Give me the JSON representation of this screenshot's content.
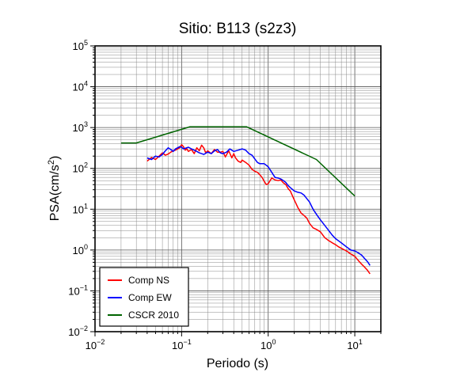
{
  "chart_data": {
    "type": "line",
    "title": "Sitio: B113 (s2z3)",
    "xlabel": "Periodo (s)",
    "ylabel": "PSA(cm/s²)",
    "xscale": "log",
    "yscale": "log",
    "xlim": [
      0.01,
      20
    ],
    "ylim": [
      0.01,
      100000
    ],
    "grid": true,
    "legend_position": "bottom-left",
    "x_tick_labels": [
      {
        "base": "10",
        "exp": "−2",
        "value": 0.01
      },
      {
        "base": "10",
        "exp": "−1",
        "value": 0.1
      },
      {
        "base": "10",
        "exp": "0",
        "value": 1
      },
      {
        "base": "10",
        "exp": "1",
        "value": 10
      }
    ],
    "y_tick_labels": [
      {
        "base": "10",
        "exp": "−2",
        "value": 0.01
      },
      {
        "base": "10",
        "exp": "−1",
        "value": 0.1
      },
      {
        "base": "10",
        "exp": "0",
        "value": 1
      },
      {
        "base": "10",
        "exp": "1",
        "value": 10
      },
      {
        "base": "10",
        "exp": "2",
        "value": 100
      },
      {
        "base": "10",
        "exp": "3",
        "value": 1000
      },
      {
        "base": "10",
        "exp": "4",
        "value": 10000
      },
      {
        "base": "10",
        "exp": "5",
        "value": 100000
      }
    ],
    "series": [
      {
        "name": "Comp NS",
        "color": "#ff0000",
        "x": [
          0.04,
          0.045,
          0.05,
          0.055,
          0.06,
          0.065,
          0.07,
          0.075,
          0.08,
          0.085,
          0.09,
          0.095,
          0.1,
          0.105,
          0.11,
          0.115,
          0.12,
          0.13,
          0.14,
          0.15,
          0.16,
          0.17,
          0.18,
          0.19,
          0.2,
          0.22,
          0.24,
          0.26,
          0.28,
          0.3,
          0.32,
          0.35,
          0.38,
          0.4,
          0.42,
          0.45,
          0.48,
          0.5,
          0.55,
          0.6,
          0.65,
          0.7,
          0.75,
          0.8,
          0.85,
          0.9,
          0.95,
          1.0,
          1.1,
          1.2,
          1.3,
          1.4,
          1.5,
          1.6,
          1.7,
          1.8,
          2.0,
          2.2,
          2.4,
          2.6,
          2.8,
          3.0,
          3.3,
          3.6,
          4.0,
          4.5,
          5.0,
          5.5,
          6.0,
          6.5,
          7.0,
          8.0,
          9.0,
          10.0,
          11.0,
          12.0,
          13.0,
          14.0,
          15.0
        ],
        "y": [
          150,
          185,
          165,
          200,
          240,
          210,
          225,
          250,
          270,
          280,
          300,
          320,
          380,
          340,
          280,
          300,
          260,
          290,
          230,
          320,
          270,
          370,
          320,
          240,
          270,
          230,
          290,
          250,
          250,
          260,
          190,
          270,
          180,
          230,
          180,
          150,
          140,
          160,
          140,
          120,
          95,
          85,
          80,
          70,
          60,
          48,
          40,
          42,
          58,
          52,
          50,
          52,
          44,
          40,
          32,
          28,
          17,
          11,
          8,
          7,
          6,
          4.5,
          3.5,
          3.2,
          2.8,
          2.0,
          1.7,
          1.5,
          1.35,
          1.2,
          1.1,
          0.95,
          0.8,
          0.7,
          0.55,
          0.45,
          0.38,
          0.32,
          0.26
        ]
      },
      {
        "name": "Comp EW",
        "color": "#0000ff",
        "x": [
          0.04,
          0.045,
          0.05,
          0.055,
          0.06,
          0.065,
          0.07,
          0.075,
          0.08,
          0.085,
          0.09,
          0.095,
          0.1,
          0.105,
          0.11,
          0.12,
          0.13,
          0.14,
          0.15,
          0.16,
          0.17,
          0.18,
          0.2,
          0.22,
          0.24,
          0.26,
          0.28,
          0.3,
          0.33,
          0.36,
          0.4,
          0.45,
          0.5,
          0.55,
          0.6,
          0.65,
          0.7,
          0.75,
          0.8,
          0.9,
          1.0,
          1.1,
          1.2,
          1.3,
          1.4,
          1.5,
          1.6,
          1.7,
          1.8,
          2.0,
          2.2,
          2.4,
          2.6,
          2.8,
          3.0,
          3.3,
          3.6,
          4.0,
          4.5,
          5.0,
          5.5,
          6.0,
          7.0,
          8.0,
          9.0,
          10.0,
          11.0,
          12.0,
          13.0,
          14.0,
          15.0
        ],
        "y": [
          180,
          165,
          200,
          190,
          220,
          270,
          320,
          290,
          260,
          300,
          320,
          340,
          330,
          300,
          310,
          330,
          300,
          280,
          260,
          240,
          230,
          220,
          250,
          230,
          270,
          290,
          240,
          230,
          250,
          300,
          260,
          280,
          300,
          280,
          230,
          210,
          170,
          140,
          130,
          130,
          110,
          80,
          60,
          58,
          55,
          50,
          45,
          38,
          34,
          28,
          26,
          25,
          22,
          18,
          15,
          10,
          7.5,
          5.5,
          4.0,
          3.0,
          2.3,
          1.9,
          1.5,
          1.2,
          1.0,
          0.95,
          0.85,
          0.75,
          0.62,
          0.52,
          0.42
        ]
      },
      {
        "name": "CSCR 2010",
        "color": "#006400",
        "x": [
          0.02,
          0.03,
          0.125,
          0.56,
          3.6,
          10.0
        ],
        "y": [
          420,
          420,
          1050,
          1050,
          165,
          21
        ]
      }
    ]
  }
}
